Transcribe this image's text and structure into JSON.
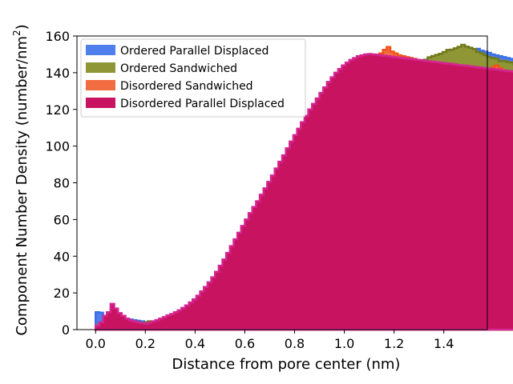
{
  "chart_data": {
    "type": "histogram-step",
    "xlabel": "Distance from pore center (nm)",
    "ylabel_main": "Component Number Density (number/nm",
    "ylabel_sup": "2",
    "ylabel_close": ")",
    "xlim": [
      -0.075,
      1.575
    ],
    "ylim": [
      0,
      160
    ],
    "xticks": [
      0.0,
      0.2,
      0.4,
      0.6,
      0.8,
      1.0,
      1.2,
      1.4
    ],
    "xtick_labels": [
      "0.0",
      "0.2",
      "0.4",
      "0.6",
      "0.8",
      "1.0",
      "1.2",
      "1.4"
    ],
    "yticks": [
      0,
      20,
      40,
      60,
      80,
      100,
      120,
      140,
      160
    ],
    "ytick_labels": [
      "0",
      "20",
      "40",
      "60",
      "80",
      "100",
      "120",
      "140",
      "160"
    ],
    "legend_position": "upper-left",
    "bin_width": 0.015,
    "x_start": 0.0,
    "series": [
      {
        "name": "Ordered Parallel Displaced",
        "color": "#3a6fe8",
        "fill": "#4f7fec",
        "values": [
          9.5,
          9.2,
          6.3,
          4.0,
          3.3,
          2.8,
          3.0,
          4.8,
          5.6,
          5.5,
          5.1,
          4.8,
          4.5,
          4.1,
          3.8,
          3.6,
          3.5,
          3.7,
          4.2,
          4.5,
          4.4,
          5.0,
          5.8,
          6.2,
          6.5,
          7.0,
          7.3,
          7.9,
          8.5,
          9.0,
          9.8,
          10.5,
          11.5,
          12.5,
          13.8,
          15.2,
          16.8,
          18.5,
          20.5,
          22.8,
          25.0,
          27.5,
          30.0,
          32.5,
          35.5,
          38.5,
          41.5,
          44.5,
          47.5,
          51.0,
          54.5,
          58.0,
          61.0,
          64.5,
          68.0,
          71.5,
          74.8,
          78.0,
          81.5,
          85.0,
          88.5,
          92.0,
          95.5,
          99.0,
          102.0,
          105.0,
          108.0,
          111.0,
          114.0,
          117.0,
          120.0,
          123.0,
          125.5,
          128.0,
          130.5,
          133.0,
          135.5,
          137.5,
          139.5,
          141.0,
          142.5,
          143.5,
          144.5,
          145.0,
          145.5,
          145.8,
          146.0,
          146.2,
          146.5,
          147.0,
          147.5,
          148.0,
          148.5,
          149.0,
          149.5,
          150.0,
          150.2,
          150.5,
          151.0,
          151.5,
          152.0,
          152.5,
          153.0,
          152.0,
          151.5,
          150.8,
          150.0,
          149.5,
          149.0,
          148.5,
          148.0,
          147.5,
          147.0,
          146.5,
          146.0,
          145.5,
          145.0,
          144.5,
          144.0,
          143.5
        ]
      },
      {
        "name": "Ordered Sandwiched",
        "color": "#707a1a",
        "fill": "#8e9636",
        "values": [
          1.0,
          1.0,
          1.0,
          1.2,
          1.5,
          1.6,
          1.2,
          1.3,
          1.6,
          2.3,
          3.4,
          4.1,
          3.6,
          3.9,
          4.5,
          4.3,
          4.3,
          4.5,
          4.3,
          5.4,
          6.4,
          7.3,
          7.8,
          8.9,
          9.4,
          9.9,
          10.1,
          10.8,
          10.7,
          11.2,
          10.8,
          11.9,
          12.6,
          14.4,
          16.1,
          17.2,
          17.6,
          19.6,
          20.9,
          22.7,
          23.9,
          26.6,
          29.2,
          31.3,
          33.8,
          37.3,
          40.6,
          43.8,
          45.9,
          49.9,
          51.7,
          55.1,
          59.3,
          61.4,
          64.2,
          66.5,
          69.9,
          72.8,
          75.1,
          77.4,
          79.3,
          83.6,
          87.1,
          89.4,
          93.0,
          95.9,
          100.0,
          102.5,
          105.5,
          109.7,
          112.2,
          115.6,
          118.7,
          122.2,
          125.5,
          128.5,
          131.6,
          134.2,
          136.3,
          138.3,
          139.7,
          142.3,
          143.7,
          144.1,
          145.3,
          145.9,
          146.2,
          146.4,
          147.1,
          148.4,
          149.1,
          149.7,
          150.3,
          151.3,
          152.4,
          152.6,
          153.3,
          154.1,
          155.2,
          154.2,
          153.6,
          152.9,
          151.3,
          150.7,
          149.6,
          148.5,
          148.0,
          147.7,
          146.3,
          146.5,
          145.9,
          145.6,
          144.5,
          143.3,
          141.9,
          141.1,
          140.3,
          139.8
        ]
      },
      {
        "name": "Disordered Sandwiched",
        "color": "#f25418",
        "fill": "#f26c42",
        "values": [
          2.3,
          3.5,
          3.9,
          4.7,
          4.6,
          5.2,
          4.3,
          3.8,
          3.9,
          3.6,
          3.4,
          3.2,
          3.0,
          2.8,
          3.1,
          3.5,
          4.0,
          4.5,
          5.0,
          5.5,
          6.0,
          6.5,
          7.0,
          7.8,
          8.5,
          9.2,
          10.0,
          11.0,
          12.0,
          13.0,
          14.5,
          16.0,
          17.5,
          19.5,
          21.5,
          24.0,
          26.5,
          29.0,
          32.0,
          35.0,
          38.0,
          41.0,
          44.0,
          47.5,
          51.0,
          54.5,
          58.0,
          61.5,
          65.0,
          68.5,
          72.0,
          75.5,
          79.0,
          82.5,
          86.0,
          89.5,
          93.0,
          96.5,
          100.0,
          103.0,
          106.0,
          109.0,
          112.5,
          116.0,
          119.5,
          123.0,
          126.5,
          130.0,
          133.0,
          136.0,
          139.0,
          141.5,
          143.5,
          145.5,
          147.5,
          149.0,
          150.5,
          152.5,
          154.0,
          151.5,
          150.5,
          149.5,
          149.0,
          148.5,
          148.0,
          147.5,
          147.0,
          146.5,
          146.0,
          145.5,
          145.0,
          144.5,
          144.0,
          143.5,
          143.0,
          142.5,
          142.0,
          141.5,
          141.0,
          140.5,
          140.0,
          139.5,
          139.0,
          138.5,
          138.0,
          141.5,
          143.0,
          144.0,
          142.5,
          141.0,
          139.5,
          139.0,
          138.5,
          138.0,
          137.5,
          137.0,
          136.5,
          136.0
        ]
      },
      {
        "name": "Disordered Parallel Displaced",
        "color": "#d42591",
        "fill": "#c81460",
        "values": [
          2.0,
          4.0,
          7.5,
          9.5,
          14.0,
          11.5,
          9.0,
          7.5,
          6.0,
          5.0,
          4.5,
          4.0,
          3.5,
          3.2,
          3.8,
          4.5,
          5.2,
          6.0,
          6.8,
          7.8,
          8.5,
          9.5,
          10.5,
          11.8,
          13.2,
          14.8,
          16.5,
          18.5,
          20.8,
          23.2,
          25.8,
          28.5,
          31.5,
          34.8,
          38.2,
          41.8,
          45.5,
          49.2,
          52.8,
          56.5,
          60.0,
          63.5,
          66.8,
          70.0,
          73.5,
          77.0,
          80.5,
          84.0,
          87.8,
          91.5,
          95.0,
          98.8,
          102.5,
          106.0,
          109.5,
          113.0,
          116.5,
          120.0,
          123.0,
          126.0,
          129.0,
          132.0,
          135.0,
          137.5,
          140.0,
          142.0,
          144.0,
          145.5,
          147.0,
          148.0,
          149.0,
          149.5,
          150.0,
          150.2,
          150.0,
          149.8,
          149.5,
          149.2,
          149.0,
          148.8,
          148.5,
          148.2,
          148.0,
          147.8,
          147.5,
          147.2,
          147.0,
          146.8,
          146.5,
          146.2,
          146.0,
          145.8,
          145.5,
          145.2,
          145.0,
          144.8,
          144.5,
          144.2,
          144.0,
          143.8,
          143.5,
          143.2,
          143.0,
          142.8,
          142.5,
          142.2,
          142.0,
          141.8,
          141.5,
          141.2,
          141.0,
          140.8,
          140.5,
          140.2,
          140.0,
          139.8
        ]
      }
    ]
  }
}
